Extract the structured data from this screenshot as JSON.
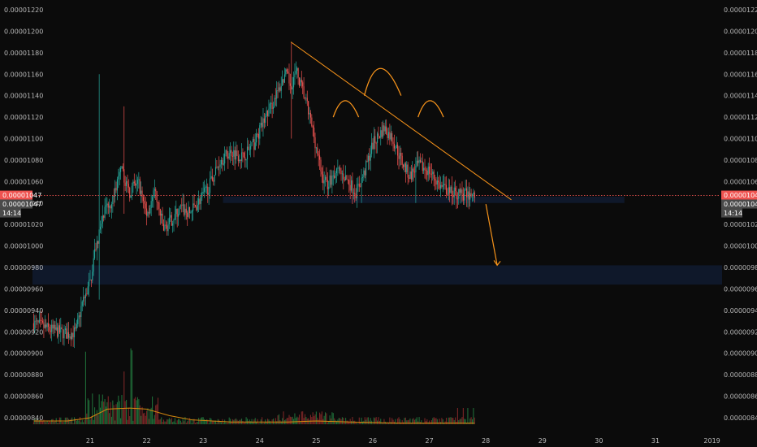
{
  "chart_data": {
    "type": "candlestick",
    "ylim": [
      8.3e-06,
      1.23e-05
    ],
    "y_ticks": [
      "0.00001220",
      "0.00001200",
      "0.00001180",
      "0.00001160",
      "0.00001140",
      "0.00001120",
      "0.00001100",
      "0.00001080",
      "0.00001060",
      "0.00001040",
      "0.00001020",
      "0.00001000",
      "0.00000980",
      "0.00000960",
      "0.00000940",
      "0.00000920",
      "0.00000900",
      "0.00000880",
      "0.00000860",
      "0.00000840"
    ],
    "x_ticks": [
      "21",
      "22",
      "23",
      "24",
      "25",
      "26",
      "27",
      "28",
      "29",
      "30",
      "31",
      "2019"
    ],
    "grid": false,
    "price_line": {
      "value": 1.047e-05
    },
    "price_tags": [
      {
        "label": "0.00001047",
        "color": "#ef5350"
      },
      {
        "label": "0.00001047",
        "color": "#4b4b4b"
      },
      {
        "label": "14:14",
        "color": "#4b4b4b"
      }
    ],
    "close_path": [
      [
        20.0,
        9.28e-06
      ],
      [
        20.3,
        9.22e-06
      ],
      [
        20.6,
        9.18e-06
      ],
      [
        20.75,
        9.2e-06
      ],
      [
        20.85,
        9.45e-06
      ],
      [
        21.0,
        9.66e-06
      ],
      [
        21.1,
        1e-05
      ],
      [
        21.25,
        1.03e-05
      ],
      [
        21.4,
        1.045e-05
      ],
      [
        21.55,
        1.07e-05
      ],
      [
        21.7,
        1.05e-05
      ],
      [
        21.85,
        1.06e-05
      ],
      [
        22.0,
        1.03e-05
      ],
      [
        22.15,
        1.05e-05
      ],
      [
        22.3,
        1.015e-05
      ],
      [
        22.45,
        1.025e-05
      ],
      [
        22.6,
        1.035e-05
      ],
      [
        22.75,
        1.03e-05
      ],
      [
        22.9,
        1.04e-05
      ],
      [
        23.1,
        1.055e-05
      ],
      [
        23.3,
        1.08e-05
      ],
      [
        23.5,
        1.088e-05
      ],
      [
        23.7,
        1.083e-05
      ],
      [
        23.9,
        1.095e-05
      ],
      [
        24.1,
        1.12e-05
      ],
      [
        24.3,
        1.14e-05
      ],
      [
        24.45,
        1.16e-05
      ],
      [
        24.55,
        1.15e-05
      ],
      [
        24.65,
        1.162e-05
      ],
      [
        24.8,
        1.138e-05
      ],
      [
        24.95,
        1.105e-05
      ],
      [
        25.1,
        1.065e-05
      ],
      [
        25.2,
        1.058e-05
      ],
      [
        25.35,
        1.07e-05
      ],
      [
        25.5,
        1.065e-05
      ],
      [
        25.7,
        1.05e-05
      ],
      [
        25.85,
        1.068e-05
      ],
      [
        26.0,
        1.095e-05
      ],
      [
        26.2,
        1.11e-05
      ],
      [
        26.35,
        1.1e-05
      ],
      [
        26.5,
        1.08e-05
      ],
      [
        26.65,
        1.065e-05
      ],
      [
        26.8,
        1.075e-05
      ],
      [
        27.0,
        1.07e-05
      ],
      [
        27.2,
        1.055e-05
      ],
      [
        27.4,
        1.05e-05
      ],
      [
        27.6,
        1.048e-05
      ],
      [
        27.8,
        1.047e-05
      ]
    ],
    "wick_extremes": [
      {
        "x": 21.15,
        "high": 1.16e-05,
        "low": 9.5e-06
      },
      {
        "x": 21.6,
        "high": 1.13e-05,
        "low": 1.03e-05
      },
      {
        "x": 24.55,
        "high": 1.19e-05,
        "low": 1.1e-05
      },
      {
        "x": 25.8,
        "high": 1.07e-05,
        "low": 1.04e-05
      },
      {
        "x": 26.75,
        "high": 1.07e-05,
        "low": 1.04e-05
      }
    ],
    "volume": {
      "average_path": [
        [
          20.0,
          8.37e-06
        ],
        [
          20.6,
          8.37e-06
        ],
        [
          21.0,
          8.4e-06
        ],
        [
          21.3,
          8.48e-06
        ],
        [
          21.7,
          8.49e-06
        ],
        [
          22.0,
          8.48e-06
        ],
        [
          22.4,
          8.42e-06
        ],
        [
          22.8,
          8.38e-06
        ],
        [
          23.5,
          8.36e-06
        ],
        [
          24.5,
          8.36e-06
        ],
        [
          25.0,
          8.37e-06
        ],
        [
          25.6,
          8.36e-06
        ],
        [
          26.5,
          8.35e-06
        ],
        [
          27.5,
          8.35e-06
        ],
        [
          27.8,
          8.35e-06
        ]
      ]
    },
    "annotations": {
      "trendline": {
        "x1": 24.55,
        "y1": 1.19e-05,
        "x2": 28.45,
        "y2": 1.043e-05
      },
      "arrow": {
        "x1": 28.0,
        "y1": 1.039e-05,
        "x2": 28.2,
        "y2": 9.82e-06
      },
      "arcs": [
        {
          "x1": 25.3,
          "y1": 1.12e-05,
          "cx": 25.5,
          "cy": 1.14e-05,
          "x2": 25.75,
          "y2": 1.12e-05
        },
        {
          "x1": 25.85,
          "y1": 1.14e-05,
          "cx": 26.1,
          "cy": 1.18e-05,
          "x2": 26.5,
          "y2": 1.14e-05
        },
        {
          "x1": 26.8,
          "y1": 1.12e-05,
          "cx": 27.0,
          "cy": 1.14e-05,
          "x2": 27.25,
          "y2": 1.12e-05
        }
      ],
      "zones": [
        {
          "x1": 23.35,
          "x2": 30.45,
          "y_low": 1.04e-05,
          "y_high": 1.046e-05
        },
        {
          "x1": 19.5,
          "x2": 32.75,
          "y_low": 9.64e-06,
          "y_high": 9.82e-06
        }
      ]
    },
    "colors": {
      "background": "#0b0b0b",
      "up": "#26a69a",
      "down": "#ef5350",
      "volume_up": "#1f6b37",
      "volume_down": "#7a2626",
      "annotation": "#f7931a",
      "zone": "#0f1a2e",
      "axis_text": "#b8b8b8"
    }
  }
}
